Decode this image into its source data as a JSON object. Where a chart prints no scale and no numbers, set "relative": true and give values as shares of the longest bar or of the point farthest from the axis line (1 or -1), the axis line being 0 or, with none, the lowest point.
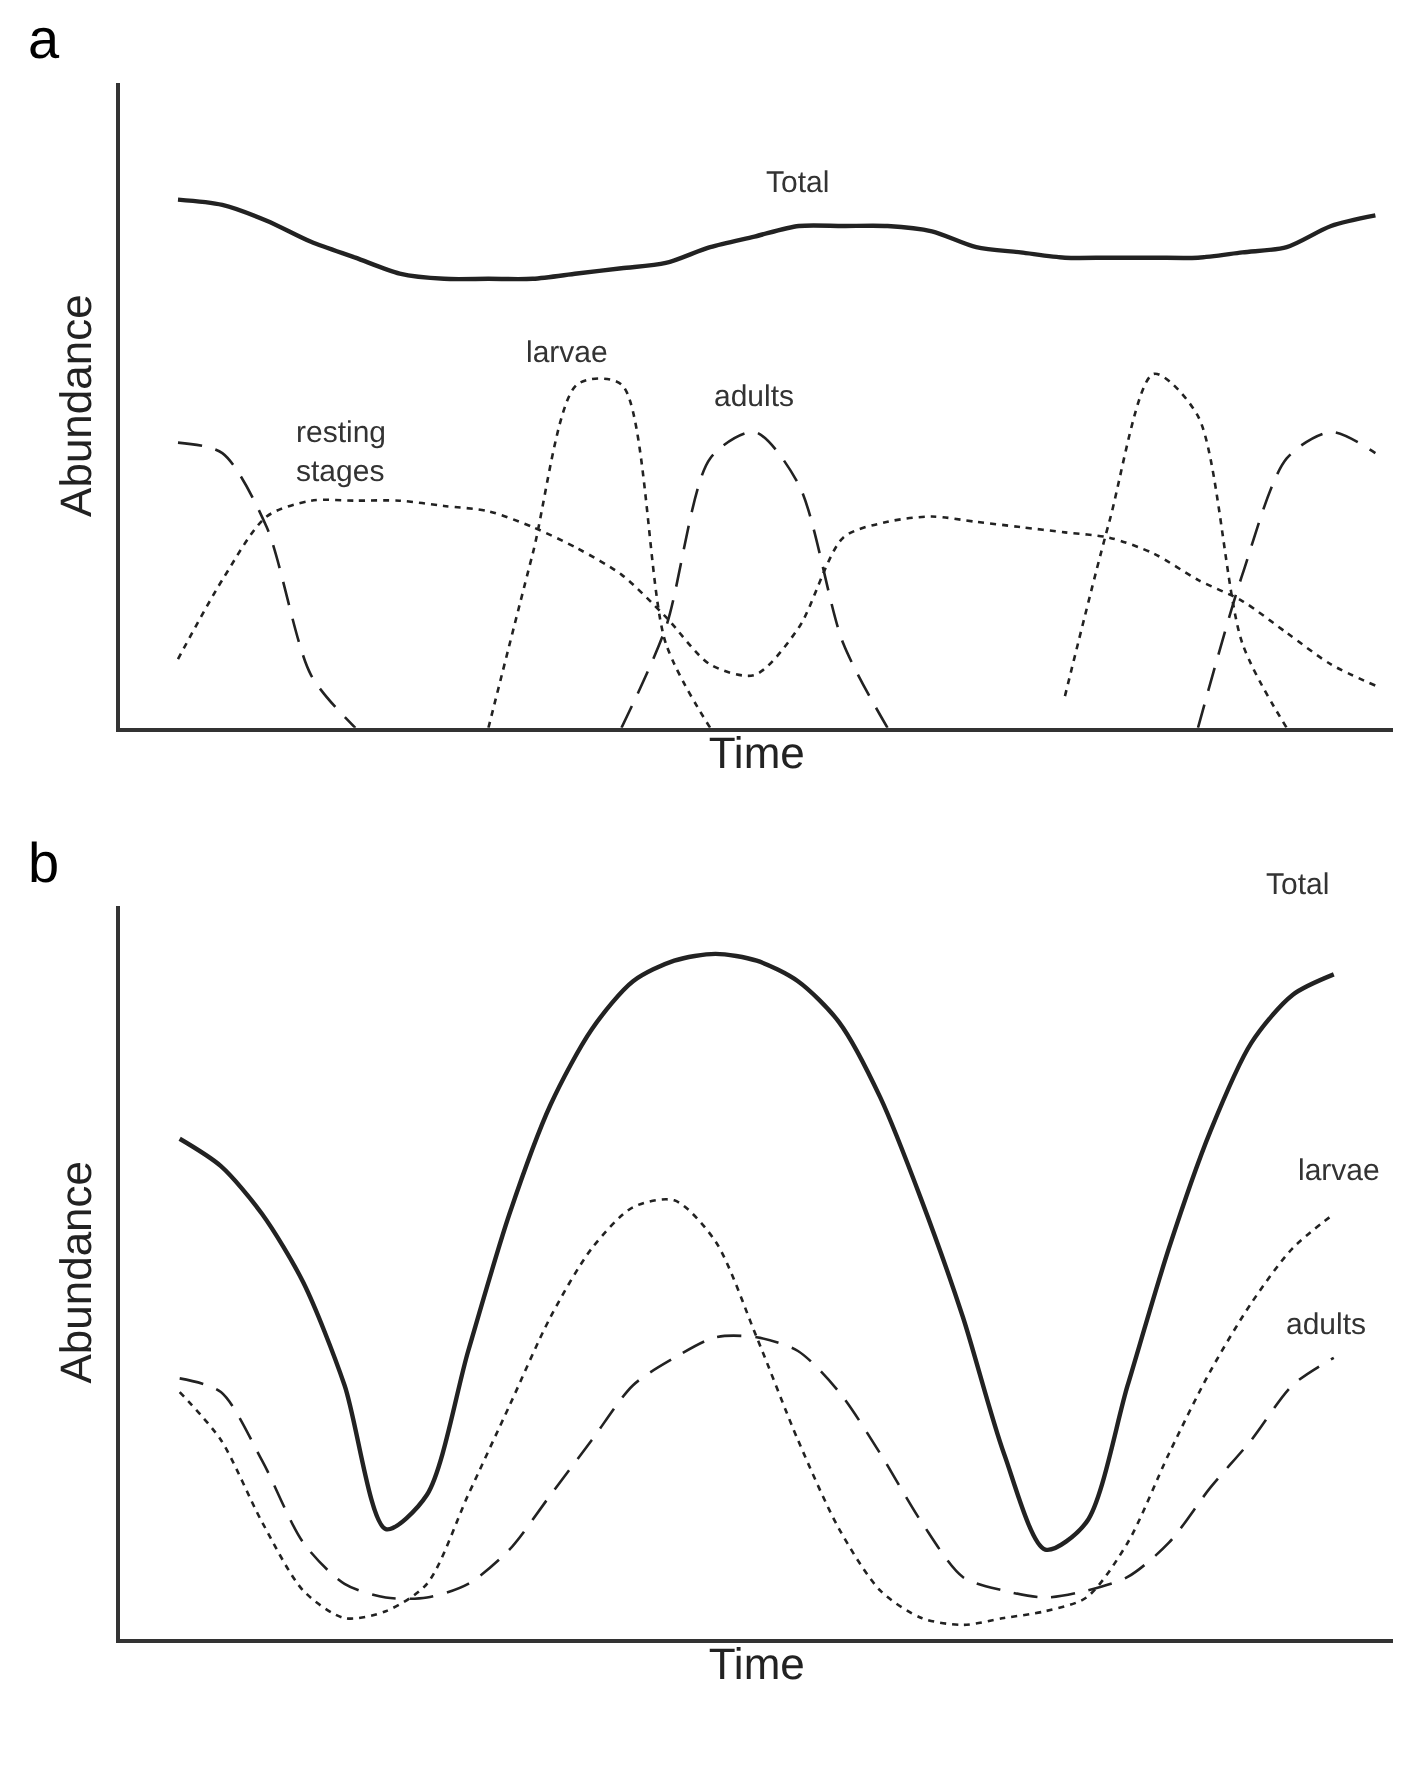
{
  "chart_data": [
    {
      "type": "line",
      "title": "a",
      "xlabel": "Time",
      "ylabel": "Abundance",
      "relative": true,
      "tick_labels": false,
      "categories": [
        null,
        null,
        null,
        null,
        null,
        null,
        null,
        null,
        null,
        null,
        null,
        null,
        null,
        null,
        null,
        null,
        null,
        null,
        null,
        null,
        null,
        null,
        null,
        null,
        null,
        null,
        null,
        null
      ],
      "series": [
        {
          "name": "Total",
          "color": "#222222",
          "line_style": "solid",
          "values": [
            1.0,
            0.99,
            0.96,
            0.92,
            0.89,
            0.86,
            0.85,
            0.85,
            0.85,
            0.86,
            0.87,
            0.88,
            0.91,
            0.93,
            0.95,
            0.95,
            0.95,
            0.94,
            0.91,
            0.9,
            0.89,
            0.89,
            0.89,
            0.89,
            0.9,
            0.91,
            0.95,
            0.97
          ]
        },
        {
          "name": "larvae",
          "color": "#222222",
          "line_style": "dotted",
          "values": [
            null,
            null,
            null,
            null,
            null,
            null,
            null,
            0,
            0.33,
            0.65,
            0.65,
            0.16,
            0,
            null,
            null,
            null,
            null,
            null,
            null,
            null,
            0.06,
            0.39,
            0.67,
            0.59,
            0.16,
            0,
            null,
            null
          ]
        },
        {
          "name": "adults",
          "color": "#222222",
          "line_style": "dashed",
          "values": [
            0.54,
            0.52,
            0.38,
            0.1,
            0,
            null,
            null,
            null,
            null,
            null,
            0,
            0.19,
            0.51,
            0.56,
            0.46,
            0.16,
            0,
            null,
            null,
            null,
            null,
            null,
            null,
            0,
            0.29,
            0.51,
            0.56,
            0.52
          ]
        },
        {
          "name": "resting stages",
          "color": "#222222",
          "line_style": "dotted",
          "values": [
            0.13,
            0.28,
            0.4,
            0.43,
            0.43,
            0.43,
            0.42,
            0.41,
            0.38,
            0.34,
            0.29,
            0.21,
            0.12,
            0.1,
            0.19,
            0.36,
            0.39,
            0.4,
            0.39,
            0.38,
            0.37,
            0.36,
            0.33,
            0.28,
            0.24,
            0.18,
            0.12,
            0.08
          ]
        }
      ]
    },
    {
      "type": "line",
      "title": "b",
      "xlabel": "Time",
      "ylabel": "Abundance",
      "relative": true,
      "tick_labels": false,
      "categories": [
        null,
        null,
        null,
        null,
        null,
        null,
        null,
        null,
        null,
        null,
        null,
        null,
        null,
        null,
        null,
        null,
        null,
        null,
        null,
        null,
        null,
        null,
        null,
        null,
        null,
        null,
        null,
        null,
        null
      ],
      "series": [
        {
          "name": "Total",
          "color": "#222222",
          "line_style": "solid",
          "values": [
            0.73,
            0.69,
            0.62,
            0.52,
            0.37,
            0.16,
            0.21,
            0.42,
            0.62,
            0.78,
            0.89,
            0.96,
            0.99,
            1.0,
            0.99,
            0.96,
            0.9,
            0.79,
            0.64,
            0.47,
            0.27,
            0.13,
            0.17,
            0.37,
            0.57,
            0.74,
            0.87,
            0.94,
            0.97
          ]
        },
        {
          "name": "larvae",
          "color": "#222222",
          "line_style": "dotted",
          "values": [
            0.36,
            0.29,
            0.17,
            0.07,
            0.03,
            0.04,
            0.08,
            0.21,
            0.34,
            0.47,
            0.57,
            0.63,
            0.64,
            0.58,
            0.44,
            0.29,
            0.16,
            0.07,
            0.03,
            0.02,
            0.03,
            0.04,
            0.06,
            0.14,
            0.27,
            0.39,
            0.49,
            0.57,
            0.62
          ]
        },
        {
          "name": "adults",
          "color": "#222222",
          "line_style": "dashed",
          "values": [
            0.38,
            0.36,
            0.26,
            0.14,
            0.08,
            0.06,
            0.06,
            0.08,
            0.13,
            0.21,
            0.29,
            0.37,
            0.41,
            0.44,
            0.44,
            0.42,
            0.36,
            0.27,
            0.17,
            0.09,
            0.07,
            0.06,
            0.07,
            0.09,
            0.14,
            0.22,
            0.29,
            0.37,
            0.41
          ]
        }
      ]
    }
  ]
}
